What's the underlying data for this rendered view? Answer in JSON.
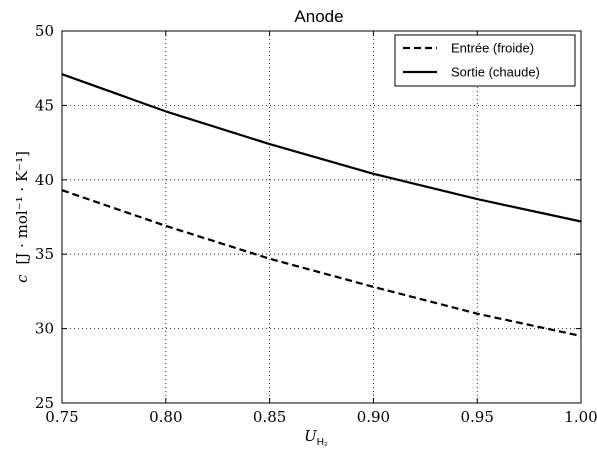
{
  "chart_data": {
    "type": "line",
    "title": "Anode",
    "xlabel": "U",
    "xlabel_sub": "H₂",
    "ylabel_c": "c",
    "ylabel_unit": "[J · mol⁻¹ · K⁻¹]",
    "xlim": [
      0.75,
      1.0
    ],
    "ylim": [
      25,
      50
    ],
    "xticks": [
      "0.75",
      "0.80",
      "0.85",
      "0.90",
      "0.95",
      "1.00"
    ],
    "yticks": [
      "25",
      "30",
      "35",
      "40",
      "45",
      "50"
    ],
    "grid": true,
    "legend_position": "top-right",
    "x": [
      0.75,
      0.8,
      0.85,
      0.9,
      0.95,
      1.0
    ],
    "series": [
      {
        "name": "Entrée (froide)",
        "style": "dashed",
        "color": "#000000",
        "values": [
          39.3,
          36.9,
          34.7,
          32.8,
          31.0,
          29.5
        ]
      },
      {
        "name": "Sortie (chaude)",
        "style": "solid",
        "color": "#000000",
        "values": [
          47.1,
          44.6,
          42.4,
          40.4,
          38.7,
          37.2
        ]
      }
    ]
  }
}
